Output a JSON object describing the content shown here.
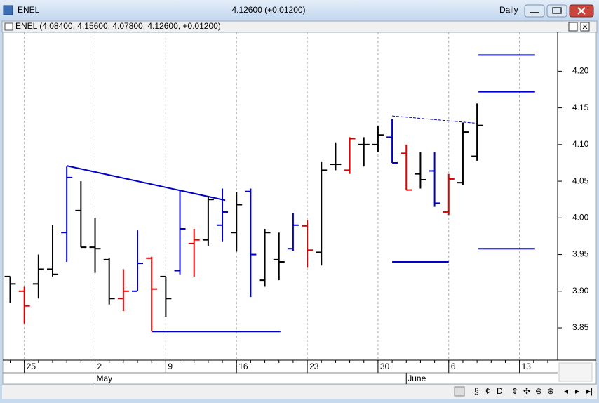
{
  "window": {
    "title": "ENEL",
    "quote": "4.12600 (+0.01200)",
    "period": "Daily",
    "toolbar": [
      "D"
    ]
  },
  "chart_data": {
    "type": "ohlc",
    "title": "ENEL (4.08400, 4.15600, 4.07800, 4.12600, +0.01200)",
    "categories": [
      null,
      "25",
      null,
      null,
      null,
      null,
      "2",
      null,
      null,
      null,
      null,
      "9",
      null,
      null,
      null,
      null,
      "16",
      null,
      null,
      null,
      null,
      "23",
      null,
      null,
      null,
      null,
      "30",
      null,
      null,
      null,
      null,
      "6",
      null,
      null,
      null,
      null,
      "13",
      null,
      null
    ],
    "months": [
      null,
      null,
      null,
      null,
      null,
      null,
      "May",
      null,
      null,
      null,
      null,
      null,
      null,
      null,
      null,
      null,
      null,
      null,
      null,
      null,
      null,
      null,
      null,
      null,
      null,
      null,
      null,
      null,
      "June",
      null,
      null,
      null,
      null,
      null,
      null,
      null,
      null,
      null,
      null
    ],
    "series": [
      {
        "name": "ENEL",
        "open": [
          3.92,
          3.9,
          3.91,
          3.93,
          3.98,
          4.01,
          3.96,
          3.943,
          3.89,
          3.9,
          3.945,
          3.92,
          3.928,
          3.965,
          3.97,
          3.99,
          3.98,
          4.036,
          3.915,
          3.943,
          3.958,
          3.989,
          3.953,
          4.073,
          4.065,
          4.1,
          4.1,
          4.11,
          4.088,
          4.06,
          4.064,
          4.008,
          4.048,
          4.084,
          null,
          null,
          null,
          null,
          null
        ],
        "high": [
          3.92,
          3.906,
          3.95,
          3.99,
          4.07,
          4.05,
          4.0,
          3.945,
          3.93,
          3.983,
          3.947,
          3.92,
          4.037,
          3.985,
          4.03,
          4.04,
          4.035,
          4.04,
          3.985,
          3.98,
          4.007,
          3.997,
          4.076,
          4.103,
          4.11,
          4.11,
          4.125,
          4.135,
          4.1,
          4.09,
          4.09,
          4.06,
          4.13,
          4.156,
          null,
          null,
          null,
          null,
          null
        ],
        "low": [
          3.884,
          3.856,
          3.89,
          3.92,
          3.94,
          3.96,
          3.925,
          3.882,
          3.873,
          3.9,
          3.845,
          3.865,
          3.923,
          3.92,
          3.962,
          3.968,
          3.954,
          3.892,
          3.906,
          3.915,
          3.955,
          3.932,
          3.935,
          4.065,
          4.06,
          4.07,
          4.09,
          4.075,
          4.038,
          4.04,
          4.015,
          4.004,
          4.045,
          4.078,
          null,
          null,
          null,
          null,
          null
        ],
        "close": [
          3.91,
          3.88,
          3.93,
          3.923,
          4.055,
          3.96,
          3.958,
          3.89,
          3.9,
          3.938,
          3.903,
          3.89,
          3.985,
          3.97,
          4.025,
          4.008,
          4.018,
          3.95,
          3.98,
          3.94,
          3.99,
          3.956,
          4.065,
          4.073,
          4.108,
          4.1,
          4.113,
          4.075,
          4.038,
          4.052,
          4.02,
          4.053,
          4.117,
          4.126,
          null,
          null,
          null,
          null,
          null
        ],
        "colors": [
          "#000000",
          "#e00000",
          "#000000",
          "#000000",
          "#0000c8",
          "#000000",
          "#000000",
          "#000000",
          "#e00000",
          "#0000c8",
          "#e00000",
          "#000000",
          "#0000c8",
          "#e00000",
          "#000000",
          "#0000c8",
          "#000000",
          "#0000c8",
          "#000000",
          "#000000",
          "#0000c8",
          "#e00000",
          "#000000",
          "#000000",
          "#e00000",
          "#000000",
          "#000000",
          "#0000c8",
          "#e00000",
          "#000000",
          "#0000c8",
          "#e00000",
          "#000000",
          "#000000"
        ]
      }
    ],
    "drawings": [
      {
        "x": [
          4,
          15.2
        ],
        "y": [
          4.071,
          4.024
        ],
        "style": "solid",
        "color": "#0000c8"
      },
      {
        "x": [
          27,
          33
        ],
        "y": [
          4.139,
          4.129
        ],
        "style": "dashed",
        "color": "#0000c8"
      },
      {
        "x": [
          10,
          19.1
        ],
        "y": [
          3.845,
          3.845
        ],
        "style": "solid",
        "color": "#0000c8"
      },
      {
        "x": [
          27,
          31
        ],
        "y": [
          3.94,
          3.94
        ],
        "style": "solid",
        "color": "#0000c8"
      },
      {
        "x": [
          33.1,
          37.1
        ],
        "y": [
          4.222,
          4.222
        ],
        "style": "solid",
        "color": "#0000c8"
      },
      {
        "x": [
          33.1,
          37.1
        ],
        "y": [
          4.172,
          4.172
        ],
        "style": "solid",
        "color": "#0000c8"
      },
      {
        "x": [
          33.1,
          37.1
        ],
        "y": [
          3.958,
          3.958
        ],
        "style": "solid",
        "color": "#0000c8"
      }
    ],
    "ylim": [
      3.806,
      4.253
    ],
    "yticks": [
      3.85,
      {
        "value": 3.9,
        "label": "3.90"
      },
      3.95,
      {
        "value": 4.0,
        "label": "4.00"
      },
      4.05,
      {
        "value": 4.1,
        "label": "4.10"
      },
      4.15,
      {
        "value": 4.2,
        "label": "4.20"
      }
    ],
    "grid": true
  }
}
